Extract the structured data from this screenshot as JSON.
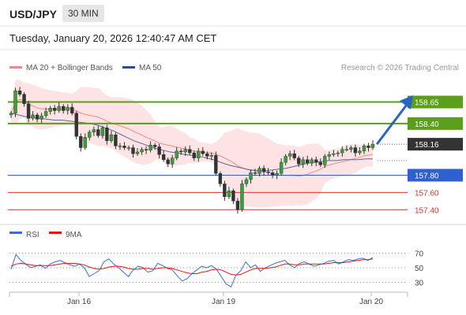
{
  "header": {
    "symbol": "USD/JPY",
    "timeframe": "30 MIN",
    "datetime": "Tuesday, January 20, 2026 12:40:47 AM CET"
  },
  "legend": {
    "items": [
      {
        "label": "MA 20 + Bollinger Bands",
        "color": "#f08a8a"
      },
      {
        "label": "MA 50",
        "color": "#2a4d8f"
      }
    ],
    "source": "Research © 2026 Trading Central"
  },
  "chart_data": {
    "type": "candlestick",
    "x_ticks": [
      "Jan 16",
      "Jan 19",
      "Jan 20"
    ],
    "ylim": [
      157.32,
      158.92
    ],
    "last_price": 158.16,
    "levels": [
      {
        "label": "158.65",
        "value": 158.65,
        "kind": "resistance",
        "color": "#5a9e1a"
      },
      {
        "label": "158.40",
        "value": 158.4,
        "kind": "resistance",
        "color": "#5a9e1a"
      },
      {
        "label": "157.80",
        "value": 157.8,
        "kind": "pivot",
        "color": "#2f5fd0"
      },
      {
        "label": "157.60",
        "value": 157.6,
        "kind": "support",
        "color": "#d33"
      },
      {
        "label": "157.40",
        "value": 157.4,
        "kind": "support",
        "color": "#d33"
      }
    ],
    "last_price_label": "158.16",
    "close_series": [
      158.52,
      158.78,
      158.74,
      158.63,
      158.46,
      158.5,
      158.45,
      158.49,
      158.54,
      158.58,
      158.55,
      158.6,
      158.55,
      158.59,
      158.52,
      158.25,
      158.12,
      158.24,
      158.3,
      158.33,
      158.26,
      158.35,
      158.2,
      158.27,
      158.14,
      158.14,
      158.12,
      158.12,
      158.05,
      158.07,
      158.1,
      158.09,
      158.15,
      158.13,
      158.04,
      157.98,
      157.93,
      158.0,
      158.08,
      158.07,
      158.1,
      158.06,
      158.0,
      158.08,
      158.05,
      158.02,
      158.03,
      157.82,
      157.7,
      157.55,
      157.62,
      157.5,
      157.4,
      157.7,
      157.75,
      157.83,
      157.82,
      157.88,
      157.84,
      157.83,
      157.8,
      157.82,
      157.95,
      158.02,
      158.05,
      158.0,
      157.93,
      157.98,
      157.94,
      157.98,
      157.95,
      157.92,
      158.02,
      158.04,
      158.05,
      158.06,
      158.1,
      158.1,
      158.12,
      158.06,
      158.08,
      158.14,
      158.12,
      158.16
    ],
    "ma50_series": [
      158.52,
      158.5,
      158.48,
      158.47,
      158.46,
      158.45,
      158.44,
      158.44,
      158.43,
      158.42,
      158.41,
      158.4,
      158.38,
      158.35,
      158.32,
      158.28,
      158.24,
      158.2,
      158.17,
      158.14,
      158.11,
      158.09,
      158.07,
      158.06,
      158.04,
      158.03,
      158.02,
      158.0,
      157.98,
      157.95,
      157.92,
      157.9,
      157.88,
      157.86,
      157.85,
      157.85,
      157.86,
      157.87,
      157.88,
      157.9,
      157.92,
      157.94,
      157.95,
      157.96,
      157.97,
      157.97,
      157.98,
      157.98,
      157.98,
      157.99,
      157.99
    ],
    "rsi": {
      "name": "RSI",
      "signal_name": "9MA",
      "levels": [
        70,
        50,
        30
      ],
      "ylim": [
        20,
        80
      ],
      "values": [
        48,
        68,
        60,
        55,
        50,
        52,
        54,
        49,
        55,
        58,
        60,
        57,
        54,
        52,
        55,
        50,
        38,
        42,
        46,
        58,
        62,
        55,
        50,
        44,
        38,
        47,
        52,
        50,
        44,
        46,
        56,
        53,
        49,
        47,
        39,
        32,
        35,
        42,
        47,
        52,
        50,
        53,
        48,
        38,
        28,
        24,
        40,
        46,
        58,
        50,
        54,
        45,
        50,
        53,
        56,
        58,
        60,
        54,
        50,
        56,
        58,
        55,
        52,
        54,
        56,
        59,
        60,
        55,
        58,
        61,
        60,
        62,
        63,
        60,
        64
      ],
      "signal": [
        52,
        55,
        56,
        55,
        54,
        53,
        53,
        53,
        53,
        54,
        55,
        56,
        56,
        56,
        55,
        54,
        51,
        49,
        48,
        49,
        51,
        52,
        52,
        51,
        49,
        48,
        48,
        49,
        49,
        48,
        49,
        50,
        50,
        49,
        47,
        45,
        43,
        42,
        42,
        44,
        45,
        47,
        48,
        47,
        44,
        41,
        40,
        41,
        44,
        47,
        49,
        49,
        49,
        50,
        51,
        53,
        55,
        55,
        54,
        54,
        55,
        55,
        55,
        55,
        55,
        56,
        57,
        57,
        57,
        58,
        59,
        60,
        61,
        61,
        62
      ]
    }
  }
}
